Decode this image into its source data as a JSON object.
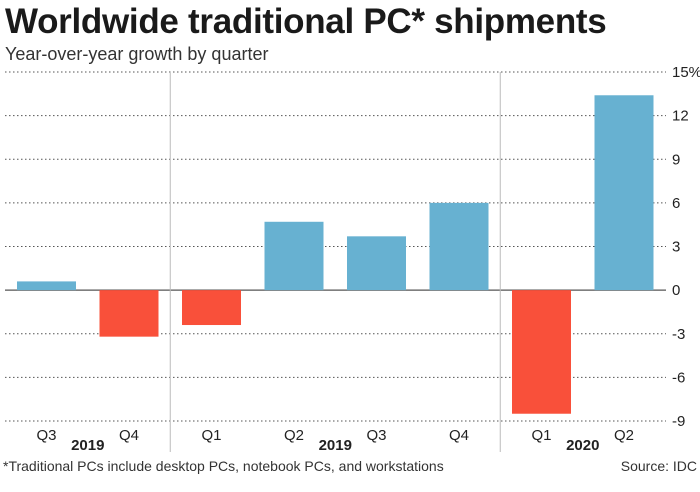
{
  "title": "Worldwide traditional PC* shipments",
  "subtitle": "Year-over-year growth by quarter",
  "footnote": "*Traditional PCs include desktop PCs, notebook PCs, and workstations",
  "source": "Source: IDC",
  "colors": {
    "positive": "#67b1d1",
    "negative": "#f9503a",
    "grid": "#555555",
    "separator": "#bbbbbb"
  },
  "chart_data": {
    "type": "bar",
    "categories": [
      "Q3",
      "Q4",
      "Q1",
      "Q2",
      "Q3",
      "Q4",
      "Q1",
      "Q2"
    ],
    "year_groups": [
      {
        "label": "2019",
        "from": 0,
        "to": 1
      },
      {
        "label": "2019",
        "from": 2,
        "to": 5
      },
      {
        "label": "2020",
        "from": 6,
        "to": 7
      }
    ],
    "values": [
      0.6,
      -3.2,
      -2.4,
      4.7,
      3.7,
      6.0,
      -8.5,
      13.4
    ],
    "ylim": [
      -9,
      15
    ],
    "yticks": [
      -9,
      -6,
      -3,
      0,
      3,
      6,
      9,
      12,
      15
    ],
    "ytick_labels": [
      "-9",
      "-6",
      "-3",
      "0",
      "3",
      "6",
      "9",
      "12",
      "15%"
    ],
    "grid": true,
    "y_axis_position": "right"
  }
}
